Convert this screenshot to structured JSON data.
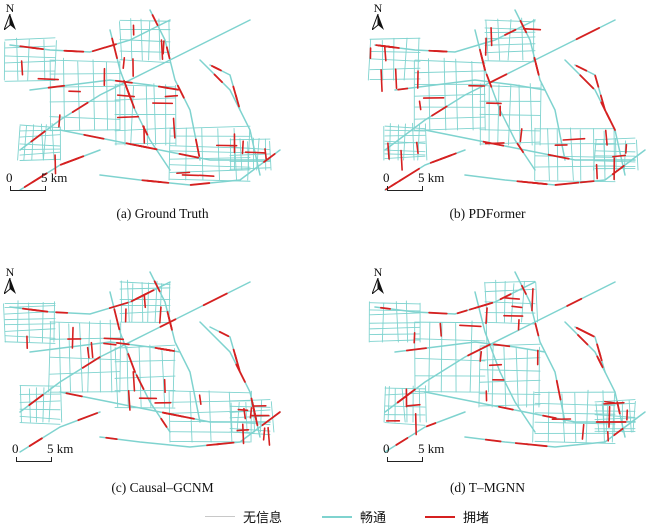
{
  "panels": [
    {
      "caption": "(a) Ground Truth",
      "scale": {
        "zero": "0",
        "distance": "5 km"
      },
      "north": "N"
    },
    {
      "caption": "(b) PDFormer",
      "scale": {
        "zero": "0",
        "distance": "5 km"
      },
      "north": "N"
    },
    {
      "caption": "(c) Causal–GCNM",
      "scale": {
        "zero": "0",
        "distance": "5 km"
      },
      "north": "N"
    },
    {
      "caption": "(d) T–MGNN",
      "scale": {
        "zero": "0",
        "distance": "5 km"
      },
      "north": "N"
    }
  ],
  "legend": [
    {
      "label": "无信息",
      "color": "#c8c8c8"
    },
    {
      "label": "畅通",
      "color": "#7fd3cf"
    },
    {
      "label": "拥堵",
      "color": "#d62020"
    }
  ],
  "colors": {
    "road": "#7fd3cf",
    "congestion": "#d62020",
    "no_info": "#c8c8c8"
  }
}
